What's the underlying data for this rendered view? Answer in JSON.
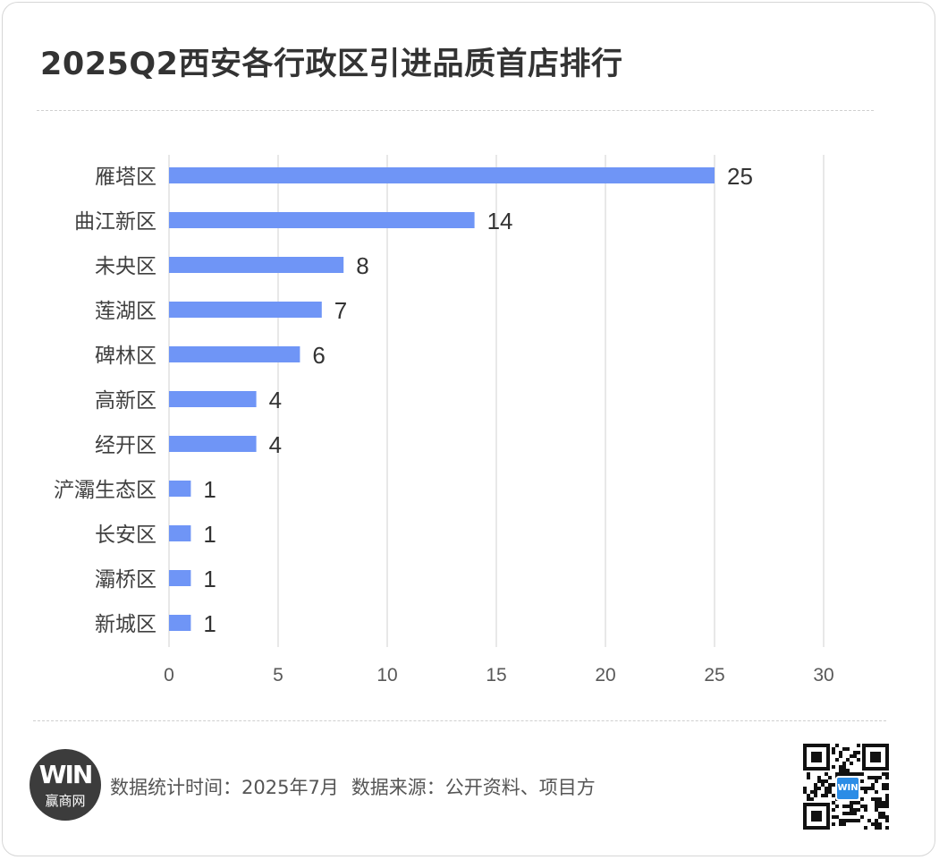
{
  "header": {
    "title": "2025Q2西安各行政区引进品质首店排行"
  },
  "chart_data": {
    "type": "bar",
    "orientation": "horizontal",
    "categories": [
      "雁塔区",
      "曲江新区",
      "未央区",
      "莲湖区",
      "碑林区",
      "高新区",
      "经开区",
      "浐灞生态区",
      "长安区",
      "灞桥区",
      "新城区"
    ],
    "values": [
      25,
      14,
      8,
      7,
      6,
      4,
      4,
      1,
      1,
      1,
      1
    ],
    "xlim": [
      0,
      30
    ],
    "xticks": [
      0,
      5,
      10,
      15,
      20,
      25,
      30
    ],
    "grid": "vertical",
    "bar_color": "#6f95f6",
    "data_labels": true
  },
  "footer": {
    "logo_mark": "WIN",
    "logo_brand": "赢商网",
    "stat_time": "数据统计时间：2025年7月",
    "source": "数据来源：公开资料、项目方",
    "qr_icon": "qr-code-icon"
  }
}
